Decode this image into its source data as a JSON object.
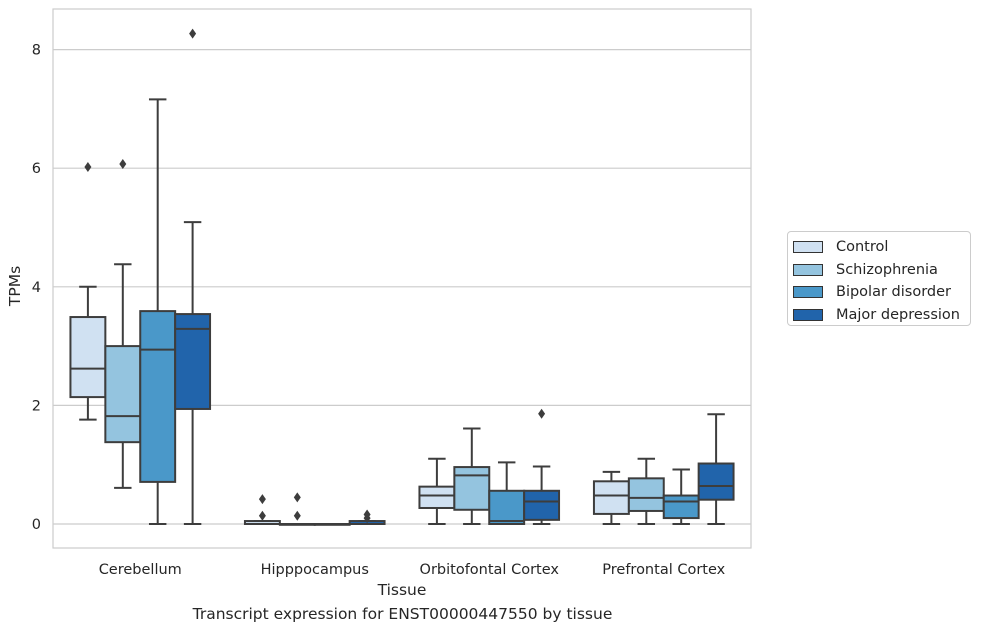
{
  "chart_data": {
    "type": "box",
    "caption": "Transcript expression for ENST00000447550 by tissue",
    "xlabel": "Tissue",
    "ylabel": "TPMs",
    "ylim": [
      -0.4,
      8.7
    ],
    "yticks": [
      0,
      2,
      4,
      6,
      8
    ],
    "grid": "horizontal",
    "legend_position": "right",
    "categories": [
      "Cerebellum",
      "Hipppocampus",
      "Orbitofontal Cortex",
      "Prefrontal Cortex"
    ],
    "series": [
      {
        "name": "Control",
        "color": "#d0e1f2",
        "boxes": [
          {
            "min": 1.76,
            "q1": 2.14,
            "median": 2.62,
            "q3": 3.49,
            "max": 4.0,
            "outliers": [
              6.02
            ]
          },
          {
            "min": 0.0,
            "q1": 0.0,
            "median": 0.0,
            "q3": 0.05,
            "max": 0.05,
            "outliers": [
              0.14,
              0.42
            ]
          },
          {
            "min": 0.0,
            "q1": 0.27,
            "median": 0.48,
            "q3": 0.63,
            "max": 1.1,
            "outliers": []
          },
          {
            "min": 0.0,
            "q1": 0.17,
            "median": 0.48,
            "q3": 0.72,
            "max": 0.88,
            "outliers": []
          }
        ]
      },
      {
        "name": "Schizophrenia",
        "color": "#94c4df",
        "boxes": [
          {
            "min": 0.61,
            "q1": 1.38,
            "median": 1.82,
            "q3": 3.0,
            "max": 4.38,
            "outliers": [
              6.07
            ]
          },
          {
            "min": 0.0,
            "q1": 0.0,
            "median": 0.0,
            "q3": 0.0,
            "max": 0.0,
            "outliers": [
              0.14,
              0.45
            ]
          },
          {
            "min": 0.0,
            "q1": 0.24,
            "median": 0.82,
            "q3": 0.96,
            "max": 1.61,
            "outliers": []
          },
          {
            "min": 0.0,
            "q1": 0.22,
            "median": 0.44,
            "q3": 0.77,
            "max": 1.1,
            "outliers": []
          }
        ]
      },
      {
        "name": "Bipolar disorder",
        "color": "#4a98c9",
        "boxes": [
          {
            "min": 0.0,
            "q1": 0.71,
            "median": 2.94,
            "q3": 3.59,
            "max": 7.16,
            "outliers": []
          },
          {
            "min": 0.0,
            "q1": 0.0,
            "median": 0.0,
            "q3": 0.0,
            "max": 0.0,
            "outliers": []
          },
          {
            "min": 0.0,
            "q1": 0.0,
            "median": 0.05,
            "q3": 0.56,
            "max": 1.04,
            "outliers": []
          },
          {
            "min": 0.0,
            "q1": 0.1,
            "median": 0.38,
            "q3": 0.48,
            "max": 0.92,
            "outliers": []
          }
        ]
      },
      {
        "name": "Major depression",
        "color": "#2164ab",
        "boxes": [
          {
            "min": 0.0,
            "q1": 1.94,
            "median": 3.29,
            "q3": 3.54,
            "max": 5.09,
            "outliers": [
              8.27
            ]
          },
          {
            "min": 0.0,
            "q1": 0.0,
            "median": 0.0,
            "q3": 0.05,
            "max": 0.05,
            "outliers": [
              0.1,
              0.16
            ]
          },
          {
            "min": 0.0,
            "q1": 0.07,
            "median": 0.38,
            "q3": 0.56,
            "max": 0.97,
            "outliers": [
              1.86
            ]
          },
          {
            "min": 0.0,
            "q1": 0.41,
            "median": 0.64,
            "q3": 1.02,
            "max": 1.85,
            "outliers": []
          }
        ]
      }
    ]
  }
}
